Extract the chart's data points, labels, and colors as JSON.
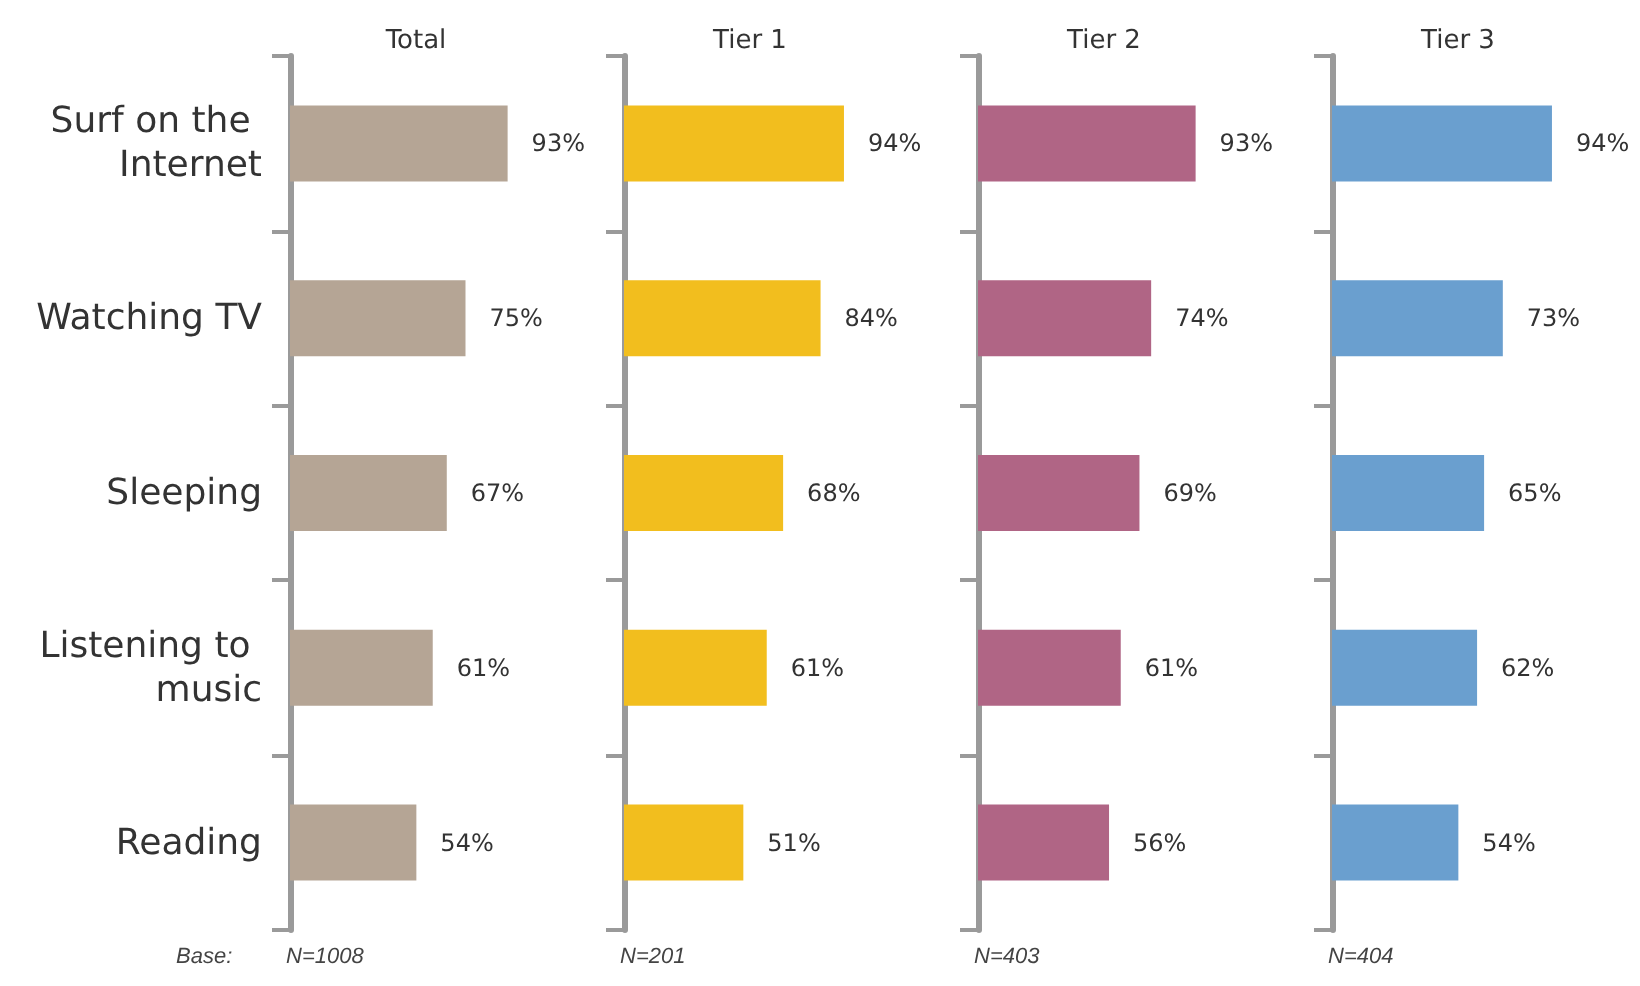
{
  "chart_data": [
    {
      "type": "bar",
      "orientation": "horizontal",
      "title": "Total",
      "categories": [
        "Surf on the Internet",
        "Watching TV",
        "Sleeping",
        "Listening to music",
        "Reading"
      ],
      "values": [
        93,
        75,
        67,
        61,
        54
      ],
      "value_labels": [
        "93%",
        "75%",
        "67%",
        "61%",
        "54%"
      ],
      "color": "#b5a595",
      "tick_labels": "y",
      "annotations": [
        "Base:",
        "N=1008"
      ]
    },
    {
      "type": "bar",
      "orientation": "horizontal",
      "title": "Tier 1",
      "categories": [
        "Surf on the Internet",
        "Watching TV",
        "Sleeping",
        "Listening to music",
        "Reading"
      ],
      "values": [
        94,
        84,
        68,
        61,
        51
      ],
      "value_labels": [
        "94%",
        "84%",
        "68%",
        "61%",
        "51%"
      ],
      "color": "#f2be1e",
      "tick_labels": false,
      "annotations": [
        "N=201"
      ]
    },
    {
      "type": "bar",
      "orientation": "horizontal",
      "title": "Tier 2",
      "categories": [
        "Surf on the Internet",
        "Watching TV",
        "Sleeping",
        "Listening to music",
        "Reading"
      ],
      "values": [
        93,
        74,
        69,
        61,
        56
      ],
      "value_labels": [
        "93%",
        "74%",
        "69%",
        "61%",
        "56%"
      ],
      "color": "#b06585",
      "tick_labels": false,
      "annotations": [
        "N=403"
      ]
    },
    {
      "type": "bar",
      "orientation": "horizontal",
      "title": "Tier 3",
      "categories": [
        "Surf on the Internet",
        "Watching TV",
        "Sleeping",
        "Listening to music",
        "Reading"
      ],
      "values": [
        94,
        73,
        65,
        62,
        54
      ],
      "value_labels": [
        "94%",
        "73%",
        "65%",
        "62%",
        "54%"
      ],
      "color": "#6a9fcf",
      "tick_labels": false,
      "annotations": [
        "N=404"
      ]
    }
  ]
}
